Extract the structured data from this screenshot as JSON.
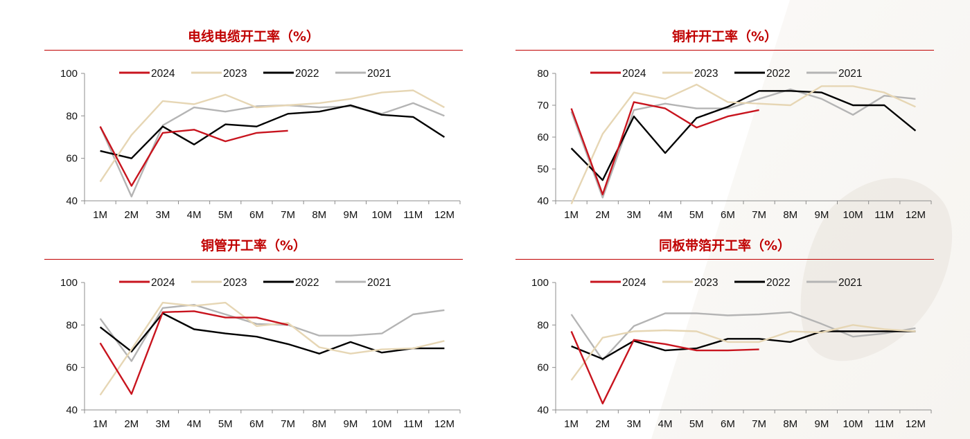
{
  "chart_data": [
    {
      "type": "line",
      "title": "电线电缆开工率（%）",
      "categories": [
        "1M",
        "2M",
        "3M",
        "4M",
        "5M",
        "6M",
        "7M",
        "8M",
        "9M",
        "10M",
        "11M",
        "12M"
      ],
      "ylim": [
        40,
        100
      ],
      "yticks": [
        40,
        60,
        80,
        100
      ],
      "legend_position": "top",
      "grid": false,
      "series": [
        {
          "name": "2024",
          "color": "#c8141e",
          "values": [
            75,
            47,
            72,
            73.5,
            68,
            72,
            73,
            null,
            null,
            null,
            null,
            null
          ]
        },
        {
          "name": "2023",
          "color": "#e6d6b4",
          "values": [
            49,
            71,
            87,
            85.5,
            90,
            84,
            85,
            86,
            88,
            91,
            92,
            84
          ]
        },
        {
          "name": "2022",
          "color": "#000000",
          "values": [
            63.5,
            60,
            75,
            66.5,
            76,
            75,
            81,
            82,
            85,
            80.5,
            79.5,
            70
          ]
        },
        {
          "name": "2021",
          "color": "#b4b4b4",
          "values": [
            75,
            42,
            75.5,
            84,
            82,
            84.5,
            85,
            84,
            84.5,
            81,
            86,
            80
          ]
        }
      ]
    },
    {
      "type": "line",
      "title": "铜杆开工率（%）",
      "categories": [
        "1M",
        "2M",
        "3M",
        "4M",
        "5M",
        "6M",
        "7M",
        "8M",
        "9M",
        "10M",
        "11M",
        "12M"
      ],
      "ylim": [
        40,
        80
      ],
      "yticks": [
        40,
        50,
        60,
        70,
        80
      ],
      "legend_position": "top",
      "grid": false,
      "series": [
        {
          "name": "2024",
          "color": "#c8141e",
          "values": [
            69,
            42,
            71,
            69,
            63,
            66.5,
            68.5,
            null,
            null,
            null,
            null,
            null
          ]
        },
        {
          "name": "2023",
          "color": "#e6d6b4",
          "values": [
            39,
            61,
            74,
            72,
            76.5,
            71,
            70.5,
            70,
            76,
            76,
            74,
            69.5
          ]
        },
        {
          "name": "2022",
          "color": "#000000",
          "values": [
            56.5,
            46.5,
            66.5,
            55,
            66,
            69.5,
            74.5,
            74.5,
            74,
            70,
            70,
            62
          ]
        },
        {
          "name": "2021",
          "color": "#b4b4b4",
          "values": [
            68,
            41,
            68.5,
            70.5,
            69,
            69,
            72,
            75,
            72,
            67,
            73,
            72
          ]
        }
      ]
    },
    {
      "type": "line",
      "title": "铜管开工率（%）",
      "categories": [
        "1M",
        "2M",
        "3M",
        "4M",
        "5M",
        "6M",
        "7M",
        "8M",
        "9M",
        "10M",
        "11M",
        "12M"
      ],
      "ylim": [
        40,
        100
      ],
      "yticks": [
        40,
        60,
        80,
        100
      ],
      "legend_position": "top",
      "grid": false,
      "series": [
        {
          "name": "2024",
          "color": "#c8141e",
          "values": [
            71.5,
            47.5,
            86,
            86.5,
            83.5,
            83.5,
            80,
            null,
            null,
            null,
            null,
            null
          ]
        },
        {
          "name": "2023",
          "color": "#e6d6b4",
          "values": [
            47,
            68.5,
            90.5,
            89,
            90.5,
            79.5,
            81,
            69.5,
            66.5,
            68.5,
            69,
            72.5
          ]
        },
        {
          "name": "2022",
          "color": "#000000",
          "values": [
            79,
            67.5,
            85.5,
            78,
            76,
            74.5,
            71,
            66.5,
            72,
            67,
            69,
            69
          ]
        },
        {
          "name": "2021",
          "color": "#b4b4b4",
          "values": [
            83,
            63,
            88,
            89.5,
            85,
            80.5,
            80,
            75,
            75,
            76,
            85,
            87
          ]
        }
      ]
    },
    {
      "type": "line",
      "title": "同板带箔开工率（%）",
      "categories": [
        "1M",
        "2M",
        "3M",
        "4M",
        "5M",
        "6M",
        "7M",
        "8M",
        "9M",
        "10M",
        "11M",
        "12M"
      ],
      "ylim": [
        40,
        100
      ],
      "yticks": [
        40,
        60,
        80,
        100
      ],
      "legend_position": "top",
      "grid": false,
      "series": [
        {
          "name": "2024",
          "color": "#c8141e",
          "values": [
            77,
            43,
            73,
            71,
            68,
            68,
            68.5,
            null,
            null,
            null,
            null,
            null
          ]
        },
        {
          "name": "2023",
          "color": "#e6d6b4",
          "values": [
            54,
            74,
            77,
            77.5,
            77,
            72,
            72,
            77,
            76.5,
            80,
            78,
            77
          ]
        },
        {
          "name": "2022",
          "color": "#000000",
          "values": [
            70,
            64,
            72.5,
            68,
            69,
            73.5,
            73.5,
            72,
            77,
            77,
            77,
            77
          ]
        },
        {
          "name": "2021",
          "color": "#b4b4b4",
          "values": [
            85,
            63.5,
            79.5,
            85.5,
            85.5,
            84.5,
            85,
            86,
            80.5,
            74.5,
            76,
            78.5
          ]
        }
      ]
    }
  ]
}
